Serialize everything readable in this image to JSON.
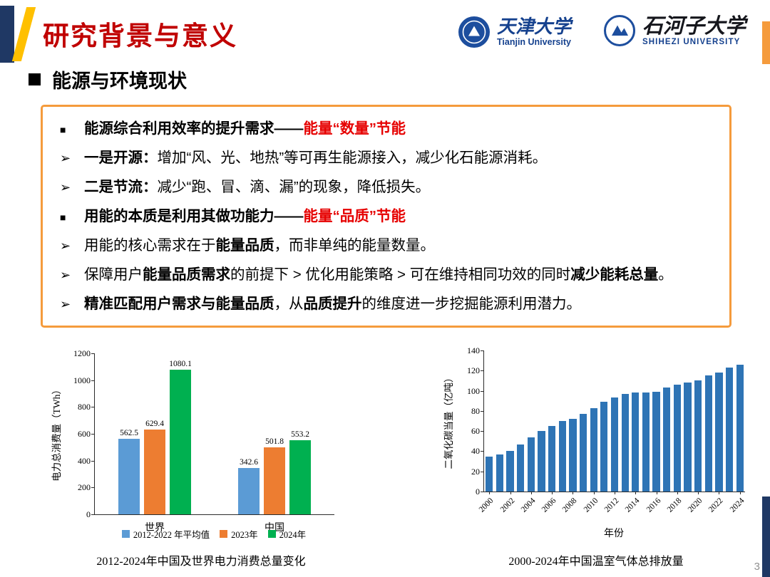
{
  "header": {
    "title": "研究背景与意义",
    "logos": [
      {
        "cn": "天津大学",
        "en": "Tianjin University"
      },
      {
        "cn": "石河子大学",
        "en": "SHIHEZI UNIVERSITY"
      }
    ]
  },
  "section": {
    "heading": "能源与环境现状"
  },
  "bullets": [
    {
      "marker": "■",
      "parts": [
        {
          "text": "能源综合利用效率的提升需求——",
          "bold": true
        },
        {
          "text": "能量“数量”节能",
          "bold": true,
          "red": true
        }
      ]
    },
    {
      "marker": "➢",
      "parts": [
        {
          "text": "一是开源：",
          "bold": true
        },
        {
          "text": "增加“风、光、地热”等可再生能源接入，减少化石能源消耗。"
        }
      ]
    },
    {
      "marker": "➢",
      "parts": [
        {
          "text": "二是节流：",
          "bold": true
        },
        {
          "text": "减少“跑、冒、滴、漏”的现象，降低损失。"
        }
      ]
    },
    {
      "marker": "■",
      "parts": [
        {
          "text": "用能的本质是利用其做功能力——",
          "bold": true
        },
        {
          "text": "能量“品质”节能",
          "bold": true,
          "red": true
        }
      ]
    },
    {
      "marker": "➢",
      "parts": [
        {
          "text": "用能的核心需求在于"
        },
        {
          "text": "能量品质",
          "bold": true
        },
        {
          "text": "，而非单纯的能量数量。"
        }
      ]
    },
    {
      "marker": "➢",
      "parts": [
        {
          "text": "保障用户"
        },
        {
          "text": "能量品质需求",
          "bold": true
        },
        {
          "text": "的前提下 > 优化用能策略 > 可在维持相同功效的同时"
        },
        {
          "text": "减少能耗总量",
          "bold": true
        },
        {
          "text": "。"
        }
      ]
    },
    {
      "marker": "➢",
      "parts": [
        {
          "text": "精准匹配用户需求与能量品质",
          "bold": true
        },
        {
          "text": "，从"
        },
        {
          "text": "品质提升",
          "bold": true
        },
        {
          "text": "的维度进一步挖掘能源利用潜力。"
        }
      ]
    }
  ],
  "chart_data": [
    {
      "type": "bar",
      "title": "2012-2024年中国及世界电力消费总量变化",
      "categories": [
        "世界",
        "中国"
      ],
      "series": [
        {
          "name": "2012-2022 年平均值",
          "color": "#5B9BD5",
          "values": [
            562.5,
            342.6
          ]
        },
        {
          "name": "2023年",
          "color": "#ED7D31",
          "values": [
            629.4,
            501.8
          ]
        },
        {
          "name": "2024年",
          "color": "#00B050",
          "values": [
            1080.1,
            553.2
          ]
        }
      ],
      "xlabel": "",
      "ylabel": "电力总消费量（TWh）",
      "ylim": [
        0,
        1200
      ],
      "yticks": [
        0,
        200,
        400,
        600,
        800,
        1000,
        1200
      ],
      "grid": false,
      "legend_position": "bottom",
      "data_labels": true
    },
    {
      "type": "bar",
      "title": "2000-2024年中国温室气体总排放量",
      "categories": [
        "2000",
        "2001",
        "2002",
        "2003",
        "2004",
        "2005",
        "2006",
        "2007",
        "2008",
        "2009",
        "2010",
        "2011",
        "2012",
        "2013",
        "2014",
        "2015",
        "2016",
        "2017",
        "2018",
        "2019",
        "2020",
        "2021",
        "2022",
        "2023",
        "2024"
      ],
      "values": [
        35,
        37,
        40,
        47,
        54,
        60,
        65,
        70,
        72,
        77,
        83,
        89,
        93,
        97,
        98,
        98,
        99,
        103,
        106,
        108,
        110,
        115,
        118,
        123,
        126
      ],
      "bar_color": "#2E74B5",
      "xlabel": "年份",
      "ylabel": "二氧化碳当量（亿吨）",
      "ylim": [
        0,
        140
      ],
      "yticks": [
        0,
        20,
        40,
        60,
        80,
        100,
        120,
        140
      ],
      "xtick_step": 2,
      "grid": false
    }
  ],
  "footer": {
    "page_number": "3"
  },
  "colors": {
    "title_red": "#C00000",
    "emphasis_red": "#E60000",
    "box_border_orange": "#F59B3C",
    "navy": "#1F3864",
    "gold": "#FFC000",
    "logo_blue": "#15418E"
  }
}
